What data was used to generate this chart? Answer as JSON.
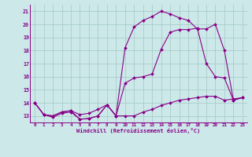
{
  "xlabel": "Windchill (Refroidissement éolien,°C)",
  "bg_color": "#cce8e8",
  "line_color": "#880088",
  "grid_color": "#aacccc",
  "xlim": [
    -0.5,
    23.5
  ],
  "ylim": [
    12.5,
    21.5
  ],
  "yticks": [
    13,
    14,
    15,
    16,
    17,
    18,
    19,
    20,
    21
  ],
  "xticks": [
    0,
    1,
    2,
    3,
    4,
    5,
    6,
    7,
    8,
    9,
    10,
    11,
    12,
    13,
    14,
    15,
    16,
    17,
    18,
    19,
    20,
    21,
    22,
    23
  ],
  "line1_x": [
    0,
    1,
    2,
    3,
    4,
    5,
    6,
    7,
    8,
    9,
    10,
    11,
    12,
    13,
    14,
    15,
    16,
    17,
    18,
    19,
    20,
    21,
    22,
    23
  ],
  "line1_y": [
    14.0,
    13.1,
    12.9,
    13.2,
    13.3,
    12.75,
    12.8,
    13.0,
    13.85,
    13.0,
    13.0,
    13.0,
    13.3,
    13.5,
    13.8,
    14.0,
    14.2,
    14.3,
    14.4,
    14.5,
    14.5,
    14.2,
    14.3,
    14.4
  ],
  "line2_x": [
    0,
    1,
    2,
    3,
    4,
    5,
    6,
    7,
    8,
    9,
    10,
    11,
    12,
    13,
    14,
    15,
    16,
    17,
    18,
    19,
    20,
    21,
    22,
    23
  ],
  "line2_y": [
    14.0,
    13.1,
    13.0,
    13.3,
    13.4,
    13.1,
    13.2,
    13.5,
    13.85,
    13.0,
    15.5,
    15.9,
    16.0,
    16.2,
    18.1,
    19.4,
    19.6,
    19.6,
    19.7,
    17.0,
    16.0,
    15.9,
    14.2,
    14.4
  ],
  "line3_x": [
    0,
    1,
    2,
    3,
    4,
    5,
    6,
    7,
    8,
    9,
    10,
    11,
    12,
    13,
    14,
    15,
    16,
    17,
    18,
    19,
    20,
    21,
    22,
    23
  ],
  "line3_y": [
    14.0,
    13.1,
    13.0,
    13.3,
    13.4,
    12.75,
    12.8,
    13.0,
    13.85,
    13.0,
    18.2,
    19.8,
    20.3,
    20.6,
    21.0,
    20.8,
    20.5,
    20.3,
    19.65,
    19.65,
    20.0,
    18.0,
    14.2,
    14.4
  ]
}
